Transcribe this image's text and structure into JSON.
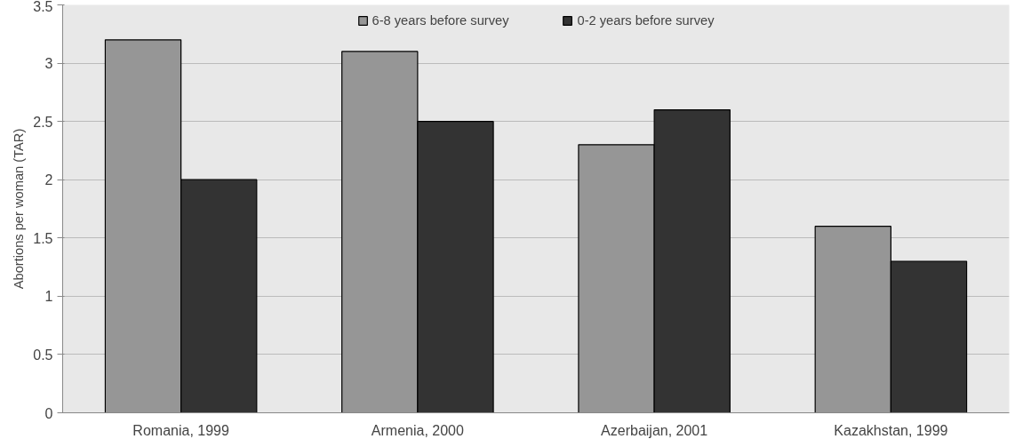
{
  "chart_data": {
    "type": "bar",
    "ylabel": "Abortions per woman (TAR)",
    "categories": [
      "Romania, 1999",
      "Armenia, 2000",
      "Azerbaijan, 2001",
      "Kazakhstan, 1999"
    ],
    "series": [
      {
        "name": "6-8 years before survey",
        "color": "#969696",
        "values": [
          3.2,
          3.1,
          2.3,
          1.6
        ]
      },
      {
        "name": "0-2 years before survey",
        "color": "#333333",
        "values": [
          2.0,
          2.5,
          2.6,
          1.3
        ]
      }
    ],
    "ylim": [
      0,
      3.5
    ],
    "yticks": [
      0,
      0.5,
      1,
      1.5,
      2,
      2.5,
      3,
      3.5
    ],
    "grid": "y",
    "legend": "top"
  }
}
